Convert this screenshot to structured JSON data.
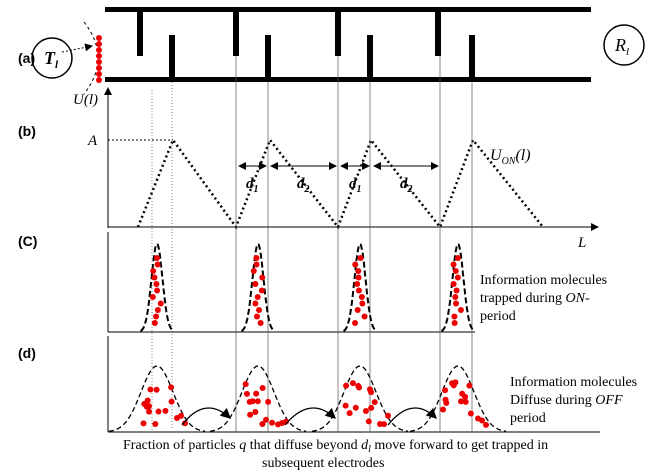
{
  "panels": {
    "a": {
      "label": "(a)",
      "transmitter": {
        "main": "T",
        "sub": "l"
      },
      "receiver": {
        "main": "R",
        "sub": "l"
      }
    },
    "b": {
      "label": "(b)",
      "y_axis": "U(l)",
      "level": "A",
      "distances": [
        {
          "main": "d",
          "sub": "1"
        },
        {
          "main": "d",
          "sub": "2"
        },
        {
          "main": "d",
          "sub": "1"
        },
        {
          "main": "d",
          "sub": "2"
        }
      ],
      "curve_label": {
        "main": "U",
        "sub": "ON",
        "tail": "(l)"
      },
      "x_axis": "L"
    },
    "c": {
      "label": "(C)",
      "note": {
        "line1": "Information molecules",
        "line2_before": "trapped during ",
        "line2_italic": "ON",
        "line2_after": "-",
        "line3": "period"
      }
    },
    "d": {
      "label": "(d)",
      "note": {
        "line1": "Information molecules",
        "line2_before": "Diffuse during ",
        "line2_italic": "OFF",
        "line3": "period"
      }
    }
  },
  "caption": {
    "part1": "Fraction of particles ",
    "q": "q",
    "part2": " that  diffuse beyond ",
    "d_main": "d",
    "d_sub": "l",
    "part3": " move forward to get trapped in",
    "line2": "subsequent electrodes"
  }
}
